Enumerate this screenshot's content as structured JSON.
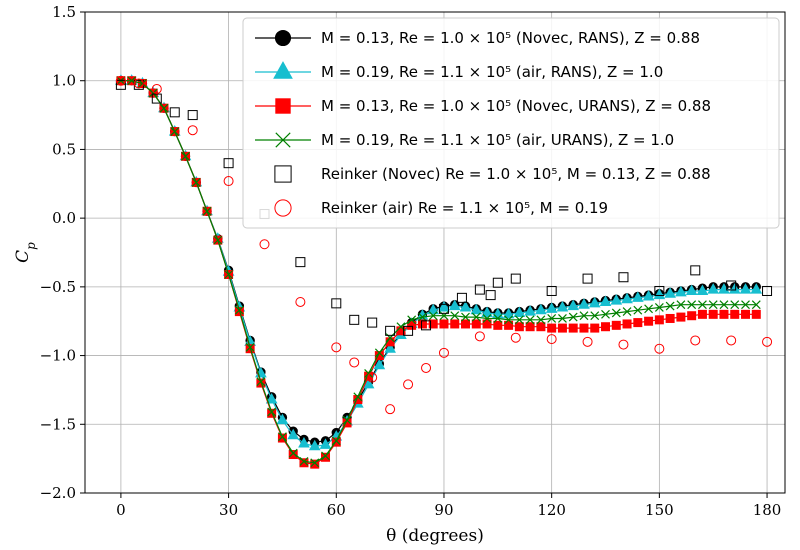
{
  "chart_data": {
    "type": "line",
    "xlabel": "θ (degrees)",
    "ylabel": "C_p",
    "xlim": [
      -10,
      185
    ],
    "ylim": [
      -2.0,
      1.5
    ],
    "xticks": [
      0,
      30,
      60,
      90,
      120,
      150,
      180
    ],
    "yticks": [
      -2.0,
      -1.5,
      -1.0,
      -0.5,
      0.0,
      0.5,
      1.0,
      1.5
    ],
    "xtick_labels": [
      "0",
      "30",
      "60",
      "90",
      "120",
      "150",
      "180"
    ],
    "ytick_labels": [
      "−2.0",
      "−1.5",
      "−1.0",
      "−0.5",
      "0.0",
      "0.5",
      "1.0",
      "1.5"
    ],
    "grid": true,
    "legend_position": "upper-right",
    "series": [
      {
        "name": "M = 0.13, Re = 1.0 × 10⁵ (Novec, RANS), Z = 0.88",
        "color": "#000000",
        "marker": "circle",
        "line": true,
        "x": [
          0,
          3,
          6,
          9,
          12,
          15,
          18,
          21,
          24,
          27,
          30,
          33,
          36,
          39,
          42,
          45,
          48,
          51,
          54,
          57,
          60,
          63,
          66,
          69,
          72,
          75,
          78,
          81,
          84,
          87,
          90,
          93,
          96,
          99,
          102,
          105,
          108,
          111,
          114,
          117,
          120,
          123,
          126,
          129,
          132,
          135,
          138,
          141,
          144,
          147,
          150,
          153,
          156,
          159,
          162,
          165,
          168,
          171,
          174,
          177
        ],
        "y": [
          1.0,
          1.0,
          0.98,
          0.91,
          0.8,
          0.63,
          0.45,
          0.26,
          0.05,
          -0.15,
          -0.38,
          -0.64,
          -0.89,
          -1.12,
          -1.3,
          -1.45,
          -1.55,
          -1.61,
          -1.63,
          -1.62,
          -1.56,
          -1.45,
          -1.33,
          -1.19,
          -1.06,
          -0.94,
          -0.84,
          -0.76,
          -0.7,
          -0.66,
          -0.64,
          -0.63,
          -0.64,
          -0.66,
          -0.68,
          -0.69,
          -0.69,
          -0.68,
          -0.67,
          -0.66,
          -0.65,
          -0.64,
          -0.63,
          -0.62,
          -0.61,
          -0.6,
          -0.59,
          -0.58,
          -0.57,
          -0.56,
          -0.55,
          -0.54,
          -0.53,
          -0.52,
          -0.51,
          -0.5,
          -0.5,
          -0.5,
          -0.5,
          -0.5
        ]
      },
      {
        "name": "M = 0.19, Re = 1.1 × 10⁵ (air, RANS), Z = 1.0",
        "color": "#17becf",
        "marker": "triangle",
        "line": true,
        "x": [
          0,
          3,
          6,
          9,
          12,
          15,
          18,
          21,
          24,
          27,
          30,
          33,
          36,
          39,
          42,
          45,
          48,
          51,
          54,
          57,
          60,
          63,
          66,
          69,
          72,
          75,
          78,
          81,
          84,
          87,
          90,
          93,
          96,
          99,
          102,
          105,
          108,
          111,
          114,
          117,
          120,
          123,
          126,
          129,
          132,
          135,
          138,
          141,
          144,
          147,
          150,
          153,
          156,
          159,
          162,
          165,
          168,
          171,
          174,
          177
        ],
        "y": [
          1.0,
          1.0,
          0.98,
          0.91,
          0.8,
          0.63,
          0.45,
          0.26,
          0.05,
          -0.15,
          -0.39,
          -0.65,
          -0.9,
          -1.13,
          -1.32,
          -1.47,
          -1.58,
          -1.64,
          -1.66,
          -1.65,
          -1.59,
          -1.48,
          -1.35,
          -1.21,
          -1.07,
          -0.95,
          -0.85,
          -0.77,
          -0.71,
          -0.67,
          -0.65,
          -0.64,
          -0.65,
          -0.67,
          -0.69,
          -0.7,
          -0.7,
          -0.69,
          -0.68,
          -0.67,
          -0.66,
          -0.65,
          -0.64,
          -0.63,
          -0.62,
          -0.61,
          -0.6,
          -0.59,
          -0.58,
          -0.57,
          -0.56,
          -0.55,
          -0.54,
          -0.53,
          -0.53,
          -0.52,
          -0.52,
          -0.52,
          -0.52,
          -0.52
        ]
      },
      {
        "name": "M = 0.13, Re = 1.0 × 10⁵ (Novec, URANS), Z = 0.88",
        "color": "#ff0000",
        "marker": "square",
        "line": true,
        "x": [
          0,
          3,
          6,
          9,
          12,
          15,
          18,
          21,
          24,
          27,
          30,
          33,
          36,
          39,
          42,
          45,
          48,
          51,
          54,
          57,
          60,
          63,
          66,
          69,
          72,
          75,
          78,
          81,
          84,
          87,
          90,
          93,
          96,
          99,
          102,
          105,
          108,
          111,
          114,
          117,
          120,
          123,
          126,
          129,
          132,
          135,
          138,
          141,
          144,
          147,
          150,
          153,
          156,
          159,
          162,
          165,
          168,
          171,
          174,
          177
        ],
        "y": [
          1.0,
          1.0,
          0.98,
          0.91,
          0.8,
          0.63,
          0.45,
          0.26,
          0.05,
          -0.16,
          -0.41,
          -0.68,
          -0.95,
          -1.2,
          -1.42,
          -1.6,
          -1.72,
          -1.78,
          -1.79,
          -1.74,
          -1.63,
          -1.49,
          -1.32,
          -1.15,
          -1.0,
          -0.9,
          -0.82,
          -0.78,
          -0.77,
          -0.77,
          -0.77,
          -0.77,
          -0.77,
          -0.77,
          -0.77,
          -0.78,
          -0.78,
          -0.79,
          -0.79,
          -0.79,
          -0.8,
          -0.8,
          -0.8,
          -0.8,
          -0.8,
          -0.79,
          -0.78,
          -0.77,
          -0.76,
          -0.75,
          -0.74,
          -0.73,
          -0.72,
          -0.71,
          -0.7,
          -0.7,
          -0.7,
          -0.7,
          -0.7,
          -0.7
        ]
      },
      {
        "name": "M = 0.19, Re = 1.1 × 10⁵ (air, URANS), Z = 1.0",
        "color": "#008000",
        "marker": "x",
        "line": true,
        "x": [
          0,
          3,
          6,
          9,
          12,
          15,
          18,
          21,
          24,
          27,
          30,
          33,
          36,
          39,
          42,
          45,
          48,
          51,
          54,
          57,
          60,
          63,
          66,
          69,
          72,
          75,
          78,
          81,
          84,
          87,
          90,
          93,
          96,
          99,
          102,
          105,
          108,
          111,
          114,
          117,
          120,
          123,
          126,
          129,
          132,
          135,
          138,
          141,
          144,
          147,
          150,
          153,
          156,
          159,
          162,
          165,
          168,
          171,
          174,
          177
        ],
        "y": [
          1.0,
          1.0,
          0.98,
          0.91,
          0.8,
          0.63,
          0.45,
          0.26,
          0.05,
          -0.16,
          -0.41,
          -0.67,
          -0.94,
          -1.19,
          -1.41,
          -1.59,
          -1.71,
          -1.77,
          -1.78,
          -1.73,
          -1.62,
          -1.47,
          -1.3,
          -1.13,
          -0.98,
          -0.87,
          -0.79,
          -0.74,
          -0.72,
          -0.71,
          -0.71,
          -0.71,
          -0.72,
          -0.72,
          -0.73,
          -0.73,
          -0.74,
          -0.74,
          -0.74,
          -0.74,
          -0.73,
          -0.73,
          -0.72,
          -0.71,
          -0.71,
          -0.7,
          -0.69,
          -0.68,
          -0.67,
          -0.66,
          -0.65,
          -0.64,
          -0.63,
          -0.63,
          -0.63,
          -0.63,
          -0.63,
          -0.63,
          -0.63,
          -0.63
        ]
      },
      {
        "name": "Reinker (Novec) Re = 1.0 × 10⁵, M = 0.13, Z = 0.88",
        "color": "#000000",
        "marker": "open-square",
        "line": false,
        "x": [
          0,
          5,
          10,
          15,
          20,
          30,
          40,
          50,
          60,
          65,
          70,
          75,
          80,
          85,
          90,
          95,
          100,
          103,
          105,
          110,
          120,
          130,
          140,
          150,
          160,
          170,
          180
        ],
        "y": [
          0.97,
          0.97,
          0.87,
          0.77,
          0.75,
          0.4,
          0.03,
          -0.32,
          -0.62,
          -0.74,
          -0.76,
          -0.82,
          -0.82,
          -0.78,
          -0.66,
          -0.58,
          -0.52,
          -0.56,
          -0.47,
          -0.44,
          -0.53,
          -0.44,
          -0.43,
          -0.53,
          -0.38,
          -0.49,
          -0.53
        ]
      },
      {
        "name": "Reinker (air) Re = 1.1 × 10⁵, M = 0.19",
        "color": "#ff0000",
        "marker": "open-circle",
        "line": false,
        "x": [
          0,
          5,
          10,
          20,
          30,
          40,
          50,
          60,
          65,
          70,
          75,
          80,
          85,
          90,
          100,
          110,
          120,
          130,
          140,
          150,
          160,
          170,
          180
        ],
        "y": [
          1.0,
          0.98,
          0.94,
          0.64,
          0.27,
          -0.19,
          -0.61,
          -0.94,
          -1.05,
          -1.16,
          -1.39,
          -1.21,
          -1.09,
          -0.98,
          -0.86,
          -0.87,
          -0.88,
          -0.9,
          -0.92,
          -0.95,
          -0.89,
          -0.89,
          -0.9
        ]
      }
    ]
  },
  "colors": {
    "grid": "#b0b0b0",
    "axis": "#000000",
    "legend_border": "#cccccc"
  }
}
